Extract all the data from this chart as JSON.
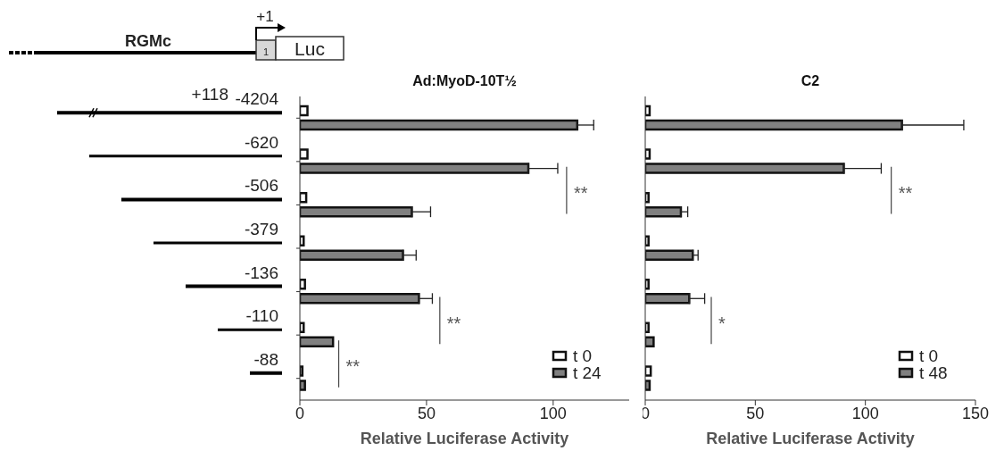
{
  "chart_data": [
    {
      "type": "bar",
      "orientation": "horizontal",
      "title": "Ad:MyoD-10T½",
      "xlabel": "Relative Luciferase Activity",
      "categories": [
        "-4204",
        "-620",
        "-506",
        "-379",
        "-136",
        "-110",
        "-88"
      ],
      "series": [
        {
          "name": "t 0",
          "color": "#ffffff",
          "values": [
            3,
            3,
            2.5,
            1.5,
            2,
            1.5,
            1
          ]
        },
        {
          "name": "t 24",
          "color": "#808080",
          "values": [
            109.5,
            90.2,
            44.2,
            40.7,
            47,
            13.1,
            2
          ],
          "errors": [
            [
              109.5,
              116
            ],
            [
              90.2,
              101.8
            ],
            [
              44.2,
              51.6
            ],
            [
              40.7,
              45.9
            ],
            [
              47,
              52.3
            ],
            null,
            null
          ]
        }
      ],
      "xlim": [
        0,
        130
      ],
      "xticks": [
        0,
        50,
        100
      ],
      "grid": false,
      "legend": "bottom right",
      "annotations": [
        "RGMc",
        "+1",
        "1",
        "Luc",
        "+118",
        "**",
        "**",
        "**"
      ]
    },
    {
      "type": "bar",
      "orientation": "horizontal",
      "title": "C2",
      "xlabel": "Relative Luciferase Activity",
      "categories": [
        null,
        null,
        null,
        null,
        null,
        null,
        null
      ],
      "tick_labels": "x",
      "series": [
        {
          "name": "t 0",
          "color": "#ffffff",
          "values": [
            2,
            2,
            1.5,
            1.5,
            1.5,
            1.5,
            2.5
          ]
        },
        {
          "name": "t 48",
          "color": "#808080",
          "values": [
            116.6,
            90.2,
            16.2,
            21.6,
            20,
            3.8,
            2
          ],
          "errors": [
            [
              116.6,
              144.7
            ],
            [
              90.2,
              107.2
            ],
            [
              16.2,
              19.3
            ],
            [
              21.6,
              24
            ],
            [
              20,
              27
            ],
            null,
            null
          ]
        }
      ],
      "xlim": [
        0,
        150
      ],
      "xticks": [
        0,
        50,
        100,
        150
      ],
      "grid": false,
      "legend": "bottom right",
      "annotations": [
        "**",
        "*"
      ]
    }
  ]
}
